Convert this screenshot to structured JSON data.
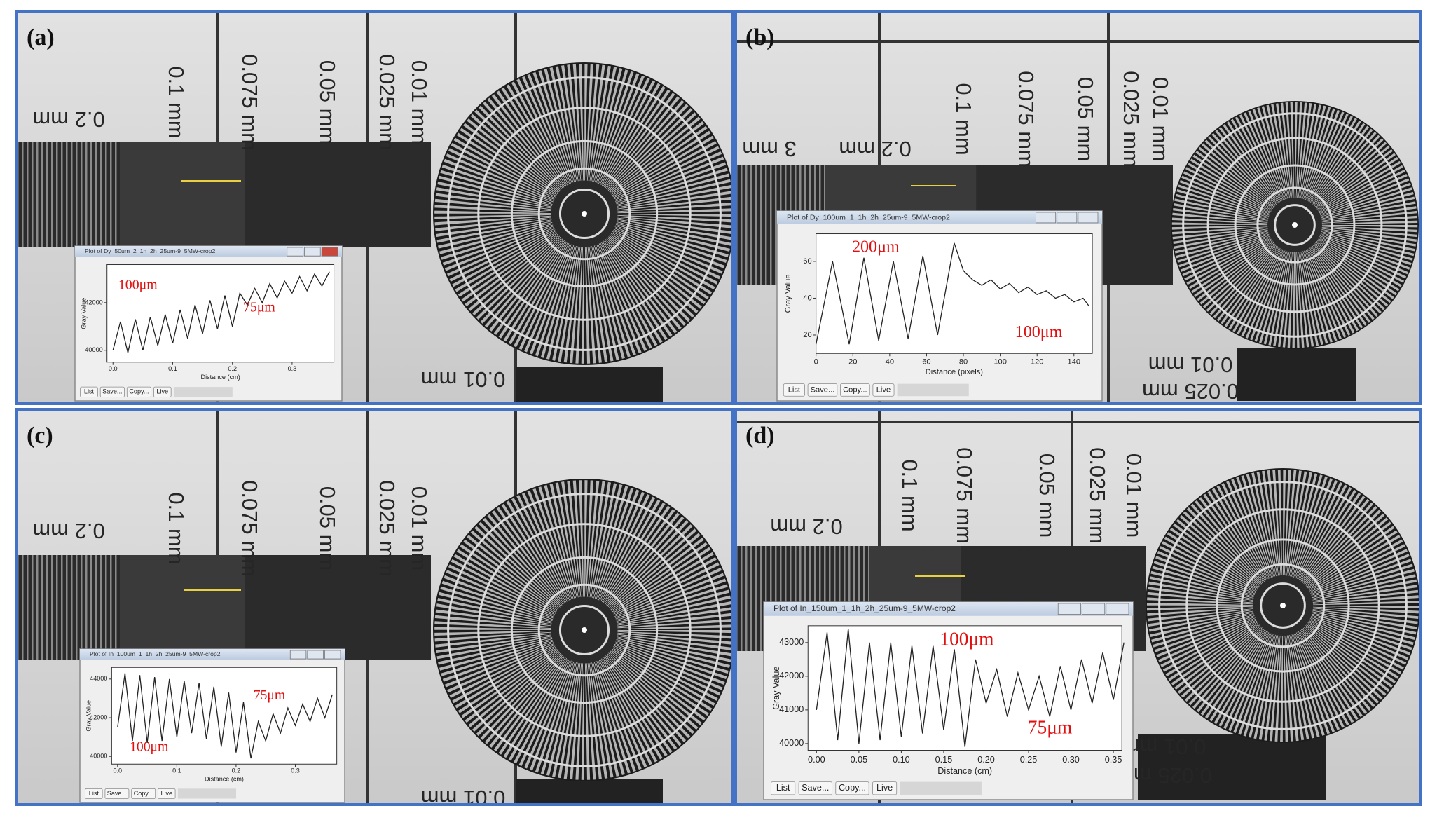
{
  "panels": [
    {
      "label": "(a)",
      "ruler_labels": [
        "0.2 mm",
        "0.1 mm",
        "0.075 mm",
        "0.05 mm",
        "0.025 mm",
        "0.01 mm",
        "0.01 mm"
      ],
      "window": {
        "title": "Plot of Dy_50um_2_1h_2h_25um-9_5MW-crop2",
        "y_label": "Gray Value",
        "x_label": "Distance (cm)",
        "xlim": [
          -0.01,
          0.37
        ],
        "ylim": [
          39500,
          43600
        ],
        "xticks": [
          {
            "value": 0,
            "label": "0.0"
          },
          0.1,
          0.2,
          0.3
        ],
        "yticks": [
          40000,
          42000
        ],
        "x": [
          0,
          0.0125,
          0.025,
          0.0375,
          0.05,
          0.0625,
          0.075,
          0.0875,
          0.1,
          0.1125,
          0.125,
          0.1375,
          0.15,
          0.1625,
          0.175,
          0.1875,
          0.2,
          0.2125,
          0.225,
          0.2375,
          0.25,
          0.2625,
          0.275,
          0.2875,
          0.3,
          0.3125,
          0.325,
          0.3375,
          0.35,
          0.3625
        ],
        "y": [
          40000,
          41200,
          39900,
          41300,
          40000,
          41400,
          40200,
          41500,
          40300,
          41700,
          40500,
          41900,
          40700,
          42100,
          40900,
          42300,
          41000,
          42400,
          41900,
          42600,
          42000,
          42800,
          42200,
          42900,
          42400,
          43100,
          42500,
          43200,
          42700,
          43300
        ],
        "annotations": [
          "100μm",
          "75μm"
        ],
        "buttons": [
          "List",
          "Save...",
          "Copy...",
          "Live"
        ]
      }
    },
    {
      "label": "(b)",
      "ruler_labels": [
        "3 mm",
        "0.2 mm",
        "0.1 mm",
        "0.075 mm",
        "0.05 mm",
        "0.025 mm",
        "0.01 mm",
        "0.01 mm",
        "0.025 mm"
      ],
      "window": {
        "title": "Plot of Dy_100um_1_1h_2h_25um-9_5MW-crop2",
        "y_label": "Gray Value",
        "x_label": "Distance (pixels)",
        "xlim": [
          0,
          150
        ],
        "ylim": [
          10,
          75
        ],
        "xticks": [
          0,
          20,
          40,
          60,
          80,
          100,
          120,
          140
        ],
        "yticks": [
          20,
          40,
          60
        ],
        "x": [
          0,
          9,
          18,
          26,
          34,
          42,
          50,
          58,
          66,
          75,
          80,
          85,
          90,
          95,
          100,
          105,
          110,
          115,
          120,
          125,
          130,
          135,
          140,
          145,
          148
        ],
        "y": [
          15,
          60,
          15,
          62,
          17,
          60,
          18,
          63,
          20,
          70,
          55,
          50,
          47,
          50,
          45,
          48,
          43,
          46,
          42,
          44,
          40,
          42,
          38,
          40,
          36
        ],
        "annotations": [
          "200μm",
          "100μm"
        ],
        "buttons": [
          "List",
          "Save...",
          "Copy...",
          "Live"
        ]
      }
    },
    {
      "label": "(c)",
      "ruler_labels": [
        "0.2 mm",
        "0.1 mm",
        "0.075 mm",
        "0.05 mm",
        "0.025 mm",
        "0.01 mm",
        "0.01 mm"
      ],
      "window": {
        "title": "Plot of In_100um_1_1h_2h_25um-9_5MW-crop2",
        "y_label": "Gray Value",
        "x_label": "Distance (cm)",
        "xlim": [
          -0.01,
          0.37
        ],
        "ylim": [
          39600,
          44600
        ],
        "xticks": [
          {
            "value": 0,
            "label": "0.0"
          },
          0.1,
          0.2,
          0.3
        ],
        "yticks": [
          40000,
          42000,
          44000
        ],
        "x": [
          0,
          0.0125,
          0.025,
          0.0375,
          0.05,
          0.0625,
          0.075,
          0.0875,
          0.1,
          0.1125,
          0.125,
          0.1375,
          0.15,
          0.1625,
          0.175,
          0.1875,
          0.2,
          0.2125,
          0.225,
          0.2375,
          0.25,
          0.2625,
          0.275,
          0.2875,
          0.3,
          0.3125,
          0.325,
          0.3375,
          0.35,
          0.3625
        ],
        "y": [
          41500,
          44300,
          40800,
          44200,
          40700,
          44100,
          40800,
          44000,
          41000,
          43900,
          41200,
          43800,
          40900,
          43600,
          40500,
          43300,
          40200,
          42800,
          39900,
          41800,
          40800,
          42200,
          41200,
          42500,
          41600,
          42700,
          41800,
          43000,
          42000,
          43200
        ],
        "annotations": [
          "75μm",
          "100μm"
        ],
        "buttons": [
          "List",
          "Save...",
          "Copy...",
          "Live"
        ]
      }
    },
    {
      "label": "(d)",
      "ruler_labels": [
        "0.2 mm",
        "0.1 mm",
        "0.075 mm",
        "0.05 mm",
        "0.025 mm",
        "0.01 mm",
        "0.01 mm",
        "0.025 mm"
      ],
      "window": {
        "title": "Plot of In_150um_1_1h_2h_25um-9_5MW-crop2",
        "y_label": "Gray Value",
        "x_label": "Distance (cm)",
        "xlim": [
          -0.01,
          0.36
        ],
        "ylim": [
          39800,
          43500
        ],
        "xticks": [
          {
            "value": 0,
            "label": "0.00"
          },
          0.05,
          {
            "value": 0.1,
            "label": "0.10"
          },
          0.15,
          {
            "value": 0.2,
            "label": "0.20"
          },
          0.25,
          {
            "value": 0.3,
            "label": "0.30"
          },
          0.35
        ],
        "yticks": [
          40000,
          41000,
          42000,
          43000
        ],
        "x": [
          0,
          0.0125,
          0.025,
          0.0375,
          0.05,
          0.0625,
          0.075,
          0.0875,
          0.1,
          0.1125,
          0.125,
          0.1375,
          0.15,
          0.1625,
          0.175,
          0.1875,
          0.2,
          0.2125,
          0.225,
          0.2375,
          0.25,
          0.2625,
          0.275,
          0.2875,
          0.3,
          0.3125,
          0.325,
          0.3375,
          0.35,
          0.3625
        ],
        "y": [
          41000,
          43300,
          40100,
          43400,
          40000,
          43000,
          40100,
          43000,
          40200,
          42900,
          40300,
          42900,
          40400,
          42800,
          39900,
          42500,
          41200,
          42200,
          40800,
          42100,
          41000,
          42000,
          40800,
          42300,
          41000,
          42500,
          41200,
          42700,
          41300,
          43000
        ],
        "annotations": [
          "100μm",
          "75μm"
        ],
        "buttons": [
          "List",
          "Save...",
          "Copy...",
          "Live"
        ]
      }
    }
  ]
}
